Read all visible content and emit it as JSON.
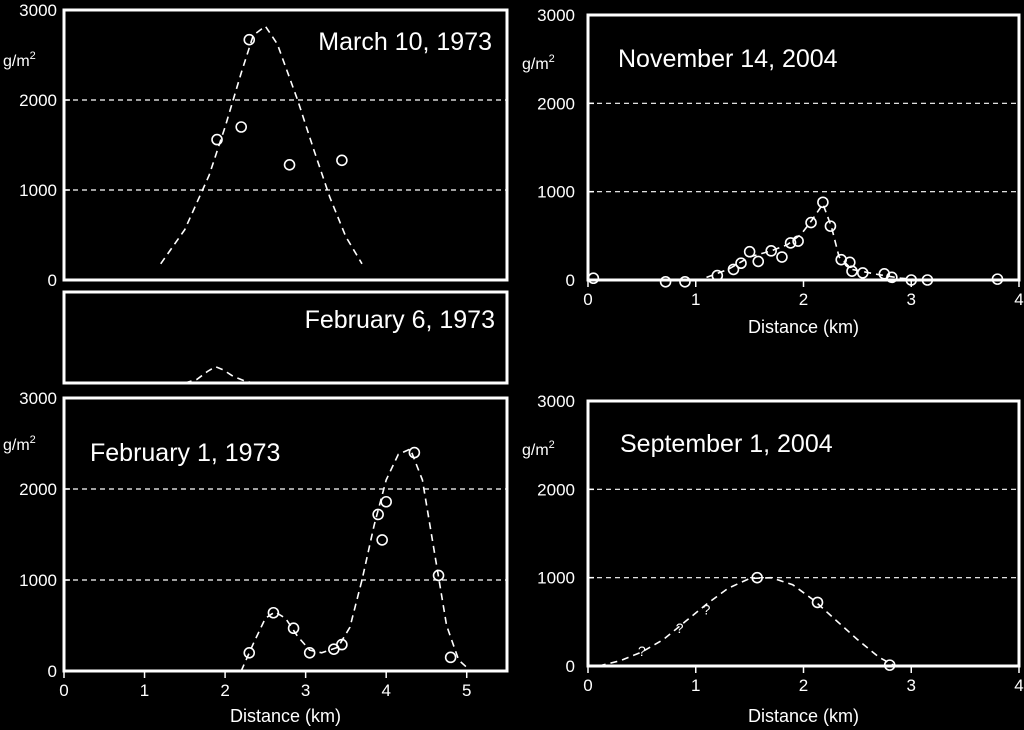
{
  "figure": {
    "background": "#000000",
    "foreground": "#ffffff"
  },
  "chart_data": [
    {
      "id": "mar1973",
      "type": "scatter",
      "title": "March 10, 1973",
      "unit": "g/m",
      "unit_sup": "2",
      "xlim": [
        0,
        5.5
      ],
      "ylim": [
        0,
        3000
      ],
      "yticks": [
        0,
        1000,
        2000,
        3000
      ],
      "ytick_labels": [
        "0",
        "1000",
        "2000",
        "3000"
      ],
      "xticks": [],
      "xtick_labels": [],
      "xlabel": "",
      "gridlines": [
        1000,
        2000
      ],
      "points": [
        {
          "x": 1.9,
          "y": 1560
        },
        {
          "x": 2.2,
          "y": 1700
        },
        {
          "x": 2.3,
          "y": 2670
        },
        {
          "x": 2.8,
          "y": 1280
        },
        {
          "x": 3.45,
          "y": 1330
        }
      ],
      "curve": [
        [
          1.2,
          180
        ],
        [
          1.5,
          560
        ],
        [
          1.8,
          1160
        ],
        [
          2.0,
          1700
        ],
        [
          2.2,
          2300
        ],
        [
          2.35,
          2720
        ],
        [
          2.5,
          2820
        ],
        [
          2.65,
          2620
        ],
        [
          2.9,
          2000
        ],
        [
          3.1,
          1450
        ],
        [
          3.3,
          920
        ],
        [
          3.5,
          480
        ],
        [
          3.7,
          180
        ]
      ]
    },
    {
      "id": "feb6_1973",
      "type": "line",
      "title": "February 6, 1973",
      "unit": "",
      "xlim": [
        0,
        5.5
      ],
      "ylim": [
        0,
        3000
      ],
      "yticks": [],
      "xticks": [],
      "xlabel": "",
      "gridlines": [],
      "points": [],
      "curve": [
        [
          1.5,
          0
        ],
        [
          1.65,
          120
        ],
        [
          1.78,
          380
        ],
        [
          1.88,
          540
        ],
        [
          1.98,
          430
        ],
        [
          2.1,
          220
        ],
        [
          2.25,
          60
        ],
        [
          2.35,
          0
        ]
      ]
    },
    {
      "id": "feb1_1973",
      "type": "scatter",
      "title": "February 1, 1973",
      "unit": "g/m",
      "unit_sup": "2",
      "xlim": [
        0,
        5.5
      ],
      "ylim": [
        0,
        3000
      ],
      "yticks": [
        0,
        1000,
        2000,
        3000
      ],
      "ytick_labels": [
        "0",
        "1000",
        "2000",
        "3000"
      ],
      "xticks": [
        0,
        1,
        2,
        3,
        4,
        5
      ],
      "xtick_labels": [
        "0",
        "1",
        "2",
        "3",
        "4",
        "5"
      ],
      "xlabel": "Distance (km)",
      "gridlines": [
        1000,
        2000
      ],
      "points": [
        {
          "x": 2.3,
          "y": 200
        },
        {
          "x": 2.6,
          "y": 640
        },
        {
          "x": 2.85,
          "y": 470
        },
        {
          "x": 3.05,
          "y": 200
        },
        {
          "x": 3.35,
          "y": 240
        },
        {
          "x": 3.45,
          "y": 290
        },
        {
          "x": 3.9,
          "y": 1720
        },
        {
          "x": 3.95,
          "y": 1440
        },
        {
          "x": 4.0,
          "y": 1860
        },
        {
          "x": 4.35,
          "y": 2400
        },
        {
          "x": 4.65,
          "y": 1050
        },
        {
          "x": 4.8,
          "y": 150
        }
      ],
      "curve": [
        [
          2.2,
          0
        ],
        [
          2.35,
          300
        ],
        [
          2.5,
          580
        ],
        [
          2.62,
          650
        ],
        [
          2.75,
          580
        ],
        [
          2.9,
          380
        ],
        [
          3.05,
          230
        ],
        [
          3.2,
          200
        ],
        [
          3.4,
          260
        ],
        [
          3.55,
          480
        ],
        [
          3.7,
          1000
        ],
        [
          3.85,
          1600
        ],
        [
          4.0,
          2100
        ],
        [
          4.15,
          2380
        ],
        [
          4.3,
          2440
        ],
        [
          4.45,
          2100
        ],
        [
          4.6,
          1300
        ],
        [
          4.75,
          500
        ],
        [
          4.9,
          120
        ],
        [
          5.05,
          0
        ]
      ]
    },
    {
      "id": "nov2004",
      "type": "scatter",
      "title": "November 14, 2004",
      "unit": "g/m",
      "unit_sup": "2",
      "xlim": [
        0,
        4
      ],
      "ylim": [
        0,
        3000
      ],
      "yticks": [
        0,
        1000,
        2000,
        3000
      ],
      "ytick_labels": [
        "0",
        "1000",
        "2000",
        "3000"
      ],
      "xticks": [
        0,
        1,
        2,
        3,
        4
      ],
      "xtick_labels": [
        "0",
        "1",
        "2",
        "3",
        "4"
      ],
      "xlabel": "Distance (km)",
      "gridlines": [
        1000,
        2000
      ],
      "points": [
        {
          "x": 0.05,
          "y": 20
        },
        {
          "x": 0.72,
          "y": -20
        },
        {
          "x": 0.9,
          "y": -20
        },
        {
          "x": 1.2,
          "y": 50
        },
        {
          "x": 1.35,
          "y": 120
        },
        {
          "x": 1.42,
          "y": 190
        },
        {
          "x": 1.5,
          "y": 320
        },
        {
          "x": 1.58,
          "y": 210
        },
        {
          "x": 1.7,
          "y": 330
        },
        {
          "x": 1.8,
          "y": 260
        },
        {
          "x": 1.88,
          "y": 420
        },
        {
          "x": 1.95,
          "y": 440
        },
        {
          "x": 2.07,
          "y": 650
        },
        {
          "x": 2.18,
          "y": 880
        },
        {
          "x": 2.25,
          "y": 610
        },
        {
          "x": 2.35,
          "y": 230
        },
        {
          "x": 2.43,
          "y": 200
        },
        {
          "x": 2.45,
          "y": 100
        },
        {
          "x": 2.55,
          "y": 80
        },
        {
          "x": 2.75,
          "y": 70
        },
        {
          "x": 2.82,
          "y": 30
        },
        {
          "x": 3.0,
          "y": 0
        },
        {
          "x": 3.15,
          "y": 0
        },
        {
          "x": 3.8,
          "y": 10
        }
      ],
      "curve": [
        [
          1.1,
          30
        ],
        [
          1.3,
          120
        ],
        [
          1.5,
          260
        ],
        [
          1.7,
          330
        ],
        [
          1.85,
          400
        ],
        [
          1.98,
          520
        ],
        [
          2.08,
          680
        ],
        [
          2.18,
          860
        ],
        [
          2.26,
          600
        ],
        [
          2.33,
          260
        ],
        [
          2.45,
          120
        ],
        [
          2.7,
          60
        ],
        [
          2.9,
          20
        ],
        [
          3.1,
          0
        ]
      ]
    },
    {
      "id": "sep2004",
      "type": "scatter",
      "title": "September 1, 2004",
      "unit": "g/m",
      "unit_sup": "2",
      "xlim": [
        0,
        4
      ],
      "ylim": [
        0,
        3000
      ],
      "yticks": [
        0,
        1000,
        2000,
        3000
      ],
      "ytick_labels": [
        "0",
        "1000",
        "2000",
        "3000"
      ],
      "xticks": [
        0,
        1,
        2,
        3,
        4
      ],
      "xtick_labels": [
        "0",
        "1",
        "2",
        "3",
        "4"
      ],
      "xlabel": "Distance (km)",
      "gridlines": [
        1000,
        2000
      ],
      "points": [
        {
          "x": 1.57,
          "y": 1000
        },
        {
          "x": 2.13,
          "y": 720
        },
        {
          "x": 2.8,
          "y": 10
        }
      ],
      "questionable": [
        {
          "x": 0.5,
          "y": 170,
          "label": "?"
        },
        {
          "x": 0.85,
          "y": 430,
          "label": "?"
        },
        {
          "x": 1.1,
          "y": 640,
          "label": "?"
        }
      ],
      "curve": [
        [
          0.1,
          0
        ],
        [
          0.3,
          60
        ],
        [
          0.5,
          160
        ],
        [
          0.7,
          300
        ],
        [
          0.9,
          500
        ],
        [
          1.1,
          700
        ],
        [
          1.3,
          880
        ],
        [
          1.5,
          990
        ],
        [
          1.7,
          1000
        ],
        [
          1.9,
          920
        ],
        [
          2.1,
          740
        ],
        [
          2.3,
          520
        ],
        [
          2.5,
          300
        ],
        [
          2.7,
          100
        ],
        [
          2.85,
          0
        ],
        [
          3.0,
          0
        ]
      ]
    }
  ]
}
